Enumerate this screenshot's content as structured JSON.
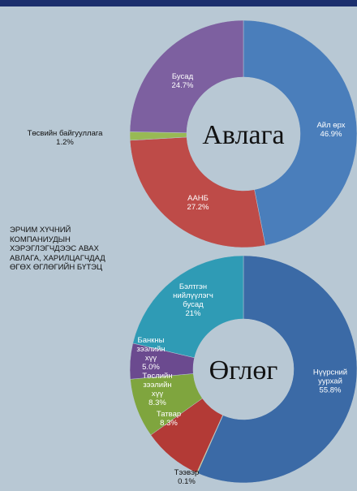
{
  "caption": "ЭРЧИМ ХҮЧНИЙ КОМПАНИУДЫН ХЭРЭГЛЭГЧДЭЭС АВАХ АВЛАГА, ХАРИЛЦАГЧДАД ӨГӨХ ӨГЛӨГИЙН БҮТЭЦ",
  "chart_data": [
    {
      "type": "pie",
      "center_label": "Авлага",
      "categories": [
        "Айл өрх",
        "ААНБ",
        "Төсвийн байгууллага",
        "Бусад"
      ],
      "values": [
        46.9,
        27.2,
        1.2,
        24.7
      ],
      "value_labels": [
        "46.9%",
        "27.2%",
        "1.2%",
        "24.7%"
      ],
      "colors": [
        "#4a7ebb",
        "#be4b48",
        "#98b954",
        "#7d60a0"
      ]
    },
    {
      "type": "pie",
      "center_label": "Өглөг",
      "categories": [
        "Нүүрсний уурхай",
        "Тээвэр",
        "Татвар",
        "Төслийн зээлийн хүү",
        "Банкны зээлийн хүү",
        "Бэлтгэн нийлүүлэгч бусад"
      ],
      "values": [
        55.8,
        0.1,
        8.3,
        8.3,
        5.0,
        21
      ],
      "value_labels": [
        "55.8%",
        "0.1%",
        "8.3%",
        "8.3%",
        "5.0%",
        "21%"
      ],
      "colors": [
        "#3b6aa6",
        "#f5e31a",
        "#b33a36",
        "#7fa53e",
        "#6b4a8f",
        "#2f9bb5"
      ]
    }
  ]
}
